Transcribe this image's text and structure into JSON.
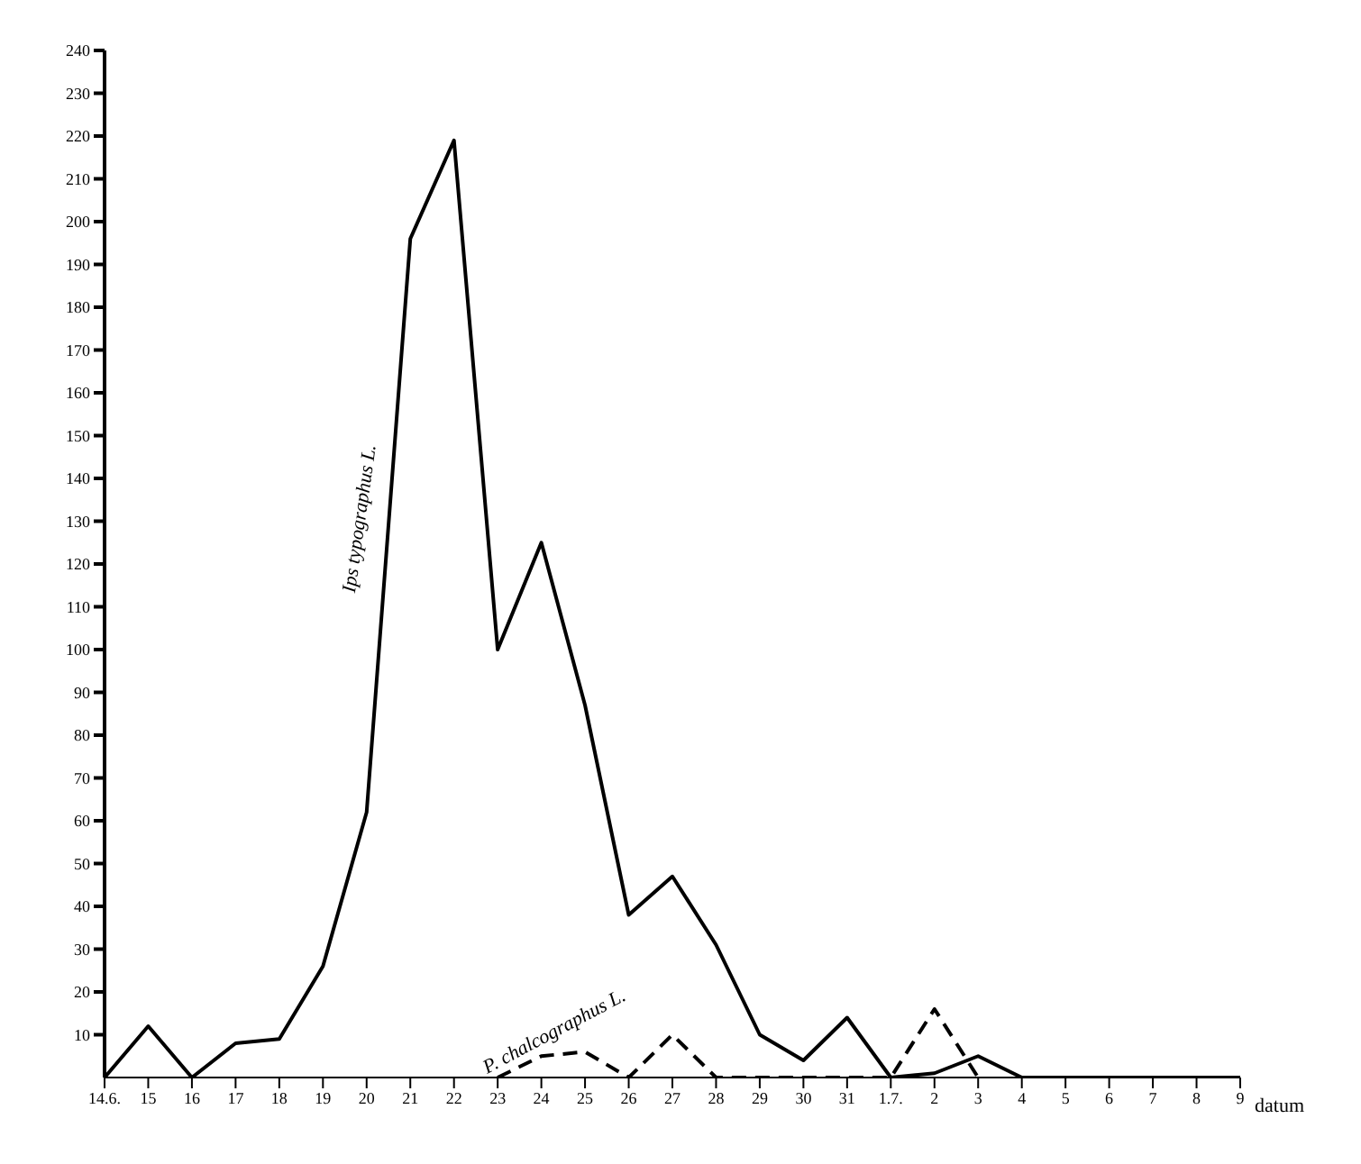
{
  "chart_data": {
    "type": "line",
    "xlabel": "datum",
    "categories": [
      "14.6.",
      "15",
      "16",
      "17",
      "18",
      "19",
      "20",
      "21",
      "22",
      "23",
      "24",
      "25",
      "26",
      "27",
      "28",
      "29",
      "30",
      "31",
      "1.7.",
      "2",
      "3",
      "4",
      "5",
      "6",
      "7",
      "8",
      "9"
    ],
    "series": [
      {
        "name": "Ips typographus L.",
        "color": "#000000",
        "line_style": "solid",
        "values": [
          0,
          12,
          0,
          8,
          9,
          26,
          62,
          196,
          219,
          100,
          125,
          87,
          38,
          47,
          31,
          10,
          4,
          14,
          0,
          1,
          5,
          0,
          0,
          0,
          0,
          0,
          0
        ]
      },
      {
        "name": "P. chalcographus L.",
        "color": "#000000",
        "line_style": "dashed",
        "values": [
          null,
          null,
          null,
          null,
          null,
          null,
          null,
          null,
          null,
          0,
          5,
          6,
          0,
          10,
          0,
          0,
          0,
          0,
          0,
          16,
          0,
          null,
          null,
          null,
          null,
          null,
          null
        ]
      }
    ],
    "ylim": [
      0,
      240
    ],
    "yticks": [
      10,
      20,
      30,
      40,
      50,
      60,
      70,
      80,
      90,
      100,
      110,
      120,
      130,
      140,
      150,
      160,
      170,
      180,
      190,
      200,
      210,
      220,
      230,
      240
    ],
    "grid": false,
    "marker": "none"
  }
}
